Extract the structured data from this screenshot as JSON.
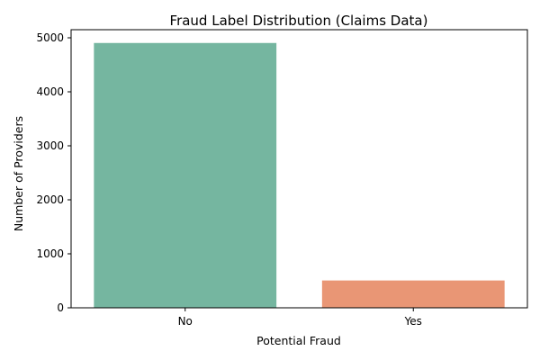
{
  "chart_data": {
    "type": "bar",
    "title": "Fraud Label Distribution (Claims Data)",
    "xlabel": "Potential Fraud",
    "ylabel": "Number of Providers",
    "categories": [
      "No",
      "Yes"
    ],
    "values": [
      4904,
      506
    ],
    "colors": [
      "#75b6a0",
      "#e99675"
    ],
    "ylim": [
      0,
      5150
    ],
    "yticks": [
      0,
      1000,
      2000,
      3000,
      4000,
      5000
    ],
    "ytick_labels": [
      "0",
      "1000",
      "2000",
      "3000",
      "4000",
      "5000"
    ],
    "grid": false,
    "legend": "none"
  }
}
